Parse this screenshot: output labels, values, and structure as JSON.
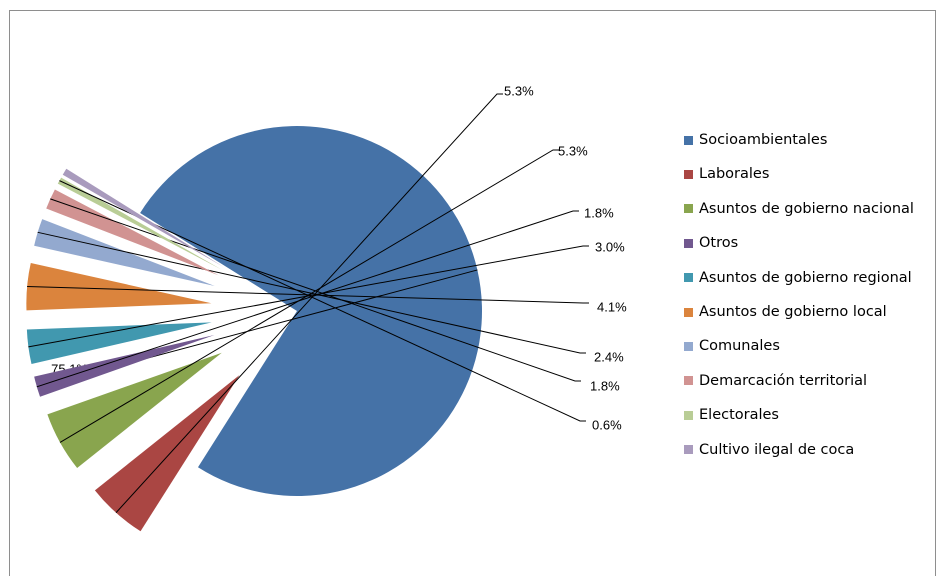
{
  "chart_data": {
    "type": "pie",
    "title": "",
    "legend_position": "right",
    "slices": [
      {
        "label": "Socioambientales",
        "value": 75.1,
        "display": "75.1%",
        "color": "#4572a7"
      },
      {
        "label": "Laborales",
        "value": 5.3,
        "display": "5.3%",
        "color": "#aa4643"
      },
      {
        "label": "Asuntos de gobierno nacional",
        "value": 5.3,
        "display": "5.3%",
        "color": "#89a54e"
      },
      {
        "label": "Otros",
        "value": 1.8,
        "display": "1.8%",
        "color": "#71588f"
      },
      {
        "label": "Asuntos de gobierno regional",
        "value": 3.0,
        "display": "3.0%",
        "color": "#4198af"
      },
      {
        "label": "Asuntos de gobierno local",
        "value": 4.1,
        "display": "4.1%",
        "color": "#db843d"
      },
      {
        "label": "Comunales",
        "value": 2.4,
        "display": "2.4%",
        "color": "#93a9cf"
      },
      {
        "label": "Demarcación territorial",
        "value": 1.8,
        "display": "1.8%",
        "color": "#d19392"
      },
      {
        "label": "Electorales",
        "value": 0.6,
        "display": "0.6%",
        "color": "#b9cd96"
      },
      {
        "label": "Cultivo ilegal de coca",
        "value": 0.6,
        "display": "",
        "color": "#a99bbd"
      }
    ]
  }
}
